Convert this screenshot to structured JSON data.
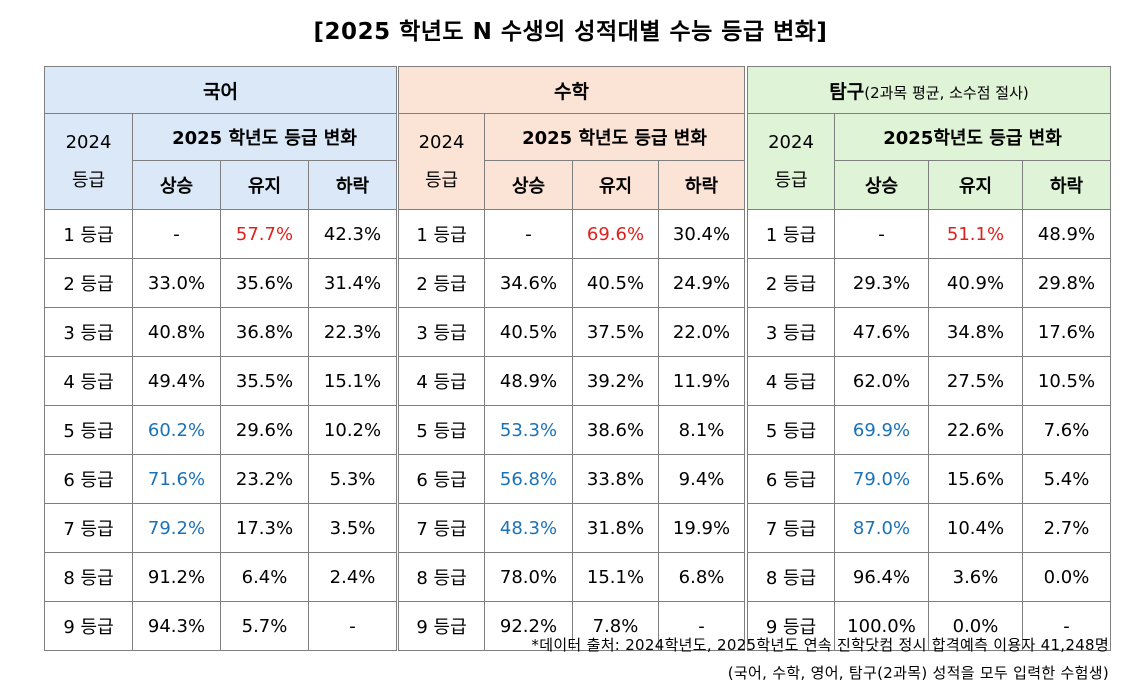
{
  "title": "[2025 학년도  N 수생의  성적대별  수능  등급  변화]",
  "year_label_top": "2024",
  "year_label_bottom": "등급",
  "change_label_kor": "2025 학년도  등급  변화",
  "change_label_math": "2025 학년도  등급  변화",
  "change_label_sci": "2025학년도  등급  변화",
  "columns": [
    "상승",
    "유지",
    "하락"
  ],
  "subjects": {
    "kor": {
      "name": "국어"
    },
    "math": {
      "name": "수학"
    },
    "sci": {
      "name": "탐구",
      "note": "(2과목  평균,  소수점  절사)"
    }
  },
  "colors": {
    "kor_header_bg": "#dae8f7",
    "math_header_bg": "#fbe3d6",
    "sci_header_bg": "#dff3d7",
    "highlight_red": "#e0201c",
    "highlight_blue": "#1a72b8"
  },
  "rows": [
    {
      "grade": "1 등급",
      "kor": [
        "-",
        "57.7%",
        "42.3%"
      ],
      "math": [
        "-",
        "69.6%",
        "30.4%"
      ],
      "sci": [
        "-",
        "51.1%",
        "48.9%"
      ],
      "hl": {
        "kor": [
          null,
          "red",
          null
        ],
        "math": [
          null,
          "red",
          null
        ],
        "sci": [
          null,
          "red",
          null
        ]
      }
    },
    {
      "grade": "2 등급",
      "kor": [
        "33.0%",
        "35.6%",
        "31.4%"
      ],
      "math": [
        "34.6%",
        "40.5%",
        "24.9%"
      ],
      "sci": [
        "29.3%",
        "40.9%",
        "29.8%"
      ]
    },
    {
      "grade": "3 등급",
      "kor": [
        "40.8%",
        "36.8%",
        "22.3%"
      ],
      "math": [
        "40.5%",
        "37.5%",
        "22.0%"
      ],
      "sci": [
        "47.6%",
        "34.8%",
        "17.6%"
      ]
    },
    {
      "grade": "4 등급",
      "kor": [
        "49.4%",
        "35.5%",
        "15.1%"
      ],
      "math": [
        "48.9%",
        "39.2%",
        "11.9%"
      ],
      "sci": [
        "62.0%",
        "27.5%",
        "10.5%"
      ]
    },
    {
      "grade": "5 등급",
      "kor": [
        "60.2%",
        "29.6%",
        "10.2%"
      ],
      "math": [
        "53.3%",
        "38.6%",
        "8.1%"
      ],
      "sci": [
        "69.9%",
        "22.6%",
        "7.6%"
      ],
      "hl": {
        "kor": [
          "blue",
          null,
          null
        ],
        "math": [
          "blue",
          null,
          null
        ],
        "sci": [
          "blue",
          null,
          null
        ]
      }
    },
    {
      "grade": "6 등급",
      "kor": [
        "71.6%",
        "23.2%",
        "5.3%"
      ],
      "math": [
        "56.8%",
        "33.8%",
        "9.4%"
      ],
      "sci": [
        "79.0%",
        "15.6%",
        "5.4%"
      ],
      "hl": {
        "kor": [
          "blue",
          null,
          null
        ],
        "math": [
          "blue",
          null,
          null
        ],
        "sci": [
          "blue",
          null,
          null
        ]
      }
    },
    {
      "grade": "7 등급",
      "kor": [
        "79.2%",
        "17.3%",
        "3.5%"
      ],
      "math": [
        "48.3%",
        "31.8%",
        "19.9%"
      ],
      "sci": [
        "87.0%",
        "10.4%",
        "2.7%"
      ],
      "hl": {
        "kor": [
          "blue",
          null,
          null
        ],
        "math": [
          "blue",
          null,
          null
        ],
        "sci": [
          "blue",
          null,
          null
        ]
      }
    },
    {
      "grade": "8 등급",
      "kor": [
        "91.2%",
        "6.4%",
        "2.4%"
      ],
      "math": [
        "78.0%",
        "15.1%",
        "6.8%"
      ],
      "sci": [
        "96.4%",
        "3.6%",
        "0.0%"
      ]
    },
    {
      "grade": "9 등급",
      "kor": [
        "94.3%",
        "5.7%",
        "-"
      ],
      "math": [
        "92.2%",
        "7.8%",
        "-"
      ],
      "sci": [
        "100.0%",
        "0.0%",
        "-"
      ]
    }
  ],
  "footer": {
    "line1": "*데이터  출처:  2024학년도,  2025학년도  연속  진학닷컴  정시  합격예측  이용자  41,248명",
    "line2": "(국어,  수학,  영어,  탐구(2과목)  성적을  모두  입력한  수험생)"
  }
}
